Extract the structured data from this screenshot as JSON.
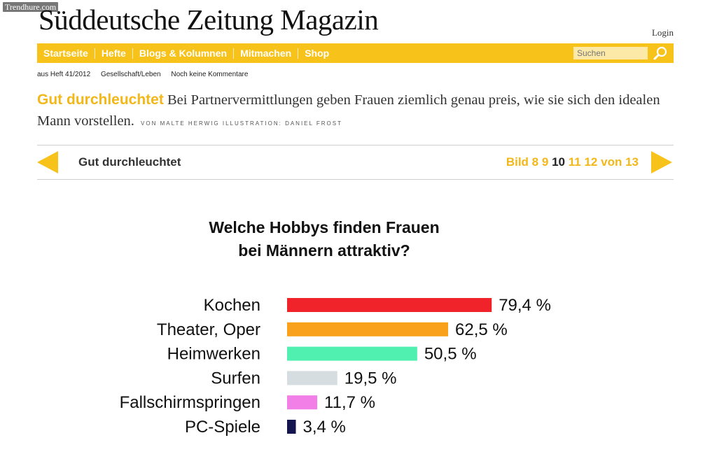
{
  "watermark": "Trendhure.com",
  "logo": "Süddeutsche Zeitung Magazin",
  "header": {
    "login_label": "Login"
  },
  "nav": {
    "items": [
      "Startseite",
      "Hefte",
      "Blogs & Kolumnen",
      "Mitmachen",
      "Shop"
    ],
    "search_placeholder": "Suchen",
    "search_icon": "magnifier-icon"
  },
  "meta": {
    "issue": "aus Heft 41/2012",
    "section": "Gesellschaft/Leben",
    "comments": "Noch keine Kommentare"
  },
  "article": {
    "kicker": "Gut durchleuchtet",
    "teaser": "Bei Partnervermittlungen geben Frauen ziemlich genau preis, wie sie sich den idealen Mann vorstellen.",
    "credit": "VON MALTE HERWIG  ILLUSTRATION: DANIEL FROST"
  },
  "gallery": {
    "title": "Gut durchleuchtet",
    "label": "Bild",
    "pages": [
      "8",
      "9",
      "10",
      "11",
      "12"
    ],
    "current": "10",
    "of_label": "von",
    "total": "13"
  },
  "colors": {
    "accent": "#f7c21a",
    "kicker": "#f2b718"
  },
  "chart_data": {
    "type": "bar",
    "orientation": "horizontal",
    "title": "Welche Hobbys finden Frauen bei Männern attraktiv?",
    "title_lines": [
      "Welche Hobbys finden Frauen",
      "bei Männern attraktiv?"
    ],
    "categories": [
      "Kochen",
      "Theater, Oper",
      "Heimwerken",
      "Surfen",
      "Fallschirmspringen",
      "PC-Spiele"
    ],
    "values": [
      79.4,
      62.5,
      50.5,
      19.5,
      11.7,
      3.4
    ],
    "value_labels": [
      "79,4 %",
      "62,5 %",
      "50,5 %",
      "19,5 %",
      "11,7 %",
      "3,4 %"
    ],
    "colors": [
      "#f0232a",
      "#f9a11b",
      "#50f0b0",
      "#d5dde0",
      "#f27ee8",
      "#14144e"
    ],
    "unit": "%",
    "xlim": [
      0,
      100
    ],
    "grid": false,
    "legend": "none"
  }
}
